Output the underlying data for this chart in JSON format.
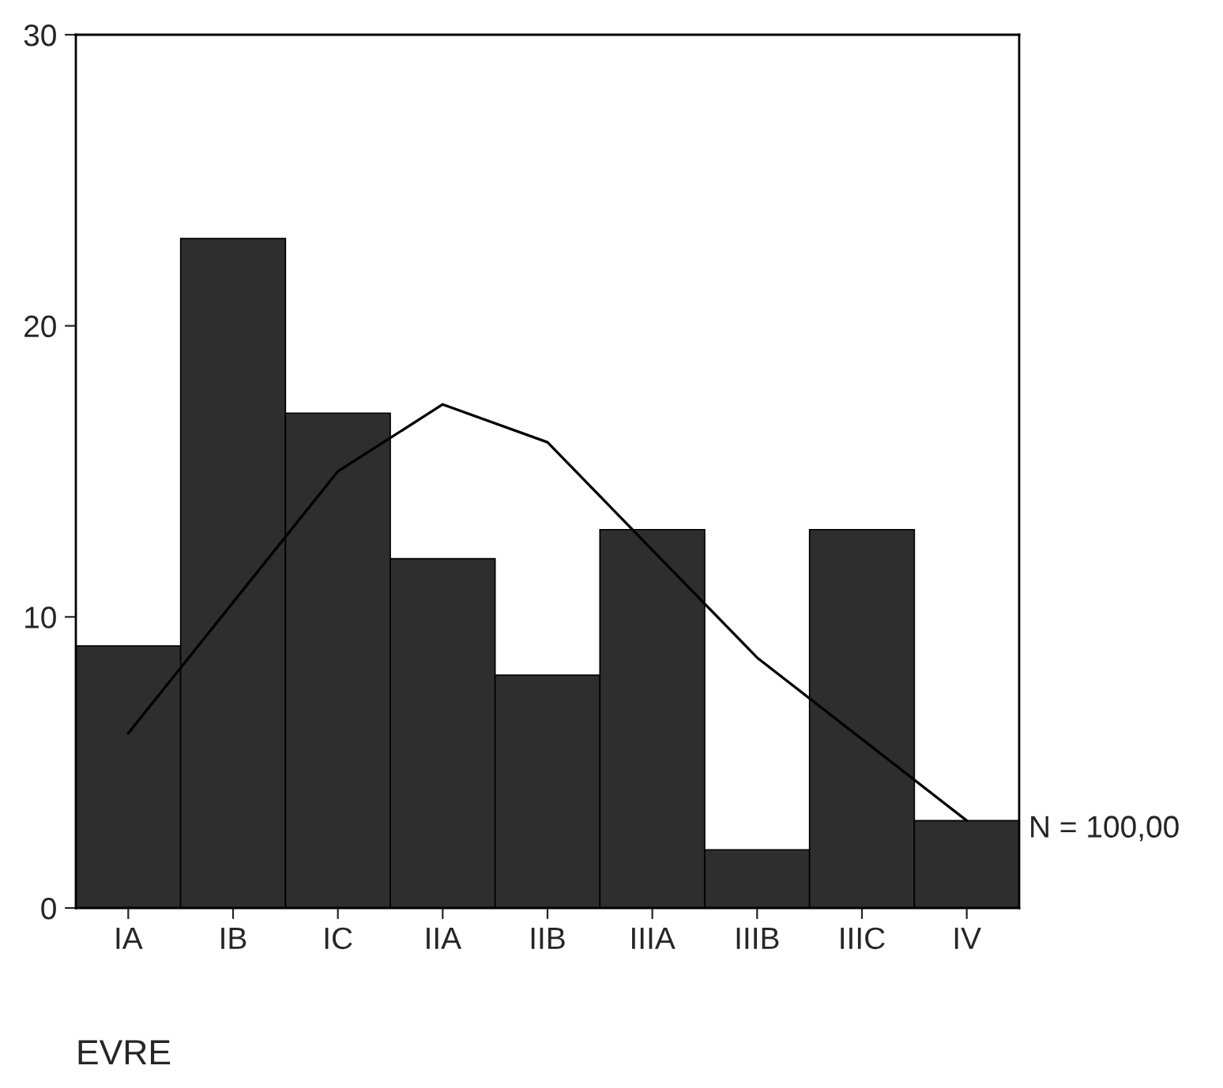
{
  "chart_data": {
    "type": "bar",
    "xlabel": "EVRE",
    "categories": [
      "IA",
      "IB",
      "IC",
      "IIA",
      "IIB",
      "IIIA",
      "IIIB",
      "IIIC",
      "IV"
    ],
    "series": [
      {
        "color": "#2e2e2e",
        "values": [
          9,
          23,
          17,
          12,
          8,
          13,
          2,
          13,
          3
        ]
      },
      {
        "type": "line",
        "color": "#000000",
        "values": [
          6.0,
          10.5,
          15.0,
          17.3,
          16.0,
          12.3,
          8.6,
          5.8,
          3.0
        ]
      }
    ],
    "ylim": [
      0,
      30
    ],
    "yticks": [
      0,
      10,
      20,
      30
    ],
    "grid": false,
    "legend": false,
    "annotations": [
      "N = 100,00"
    ]
  }
}
